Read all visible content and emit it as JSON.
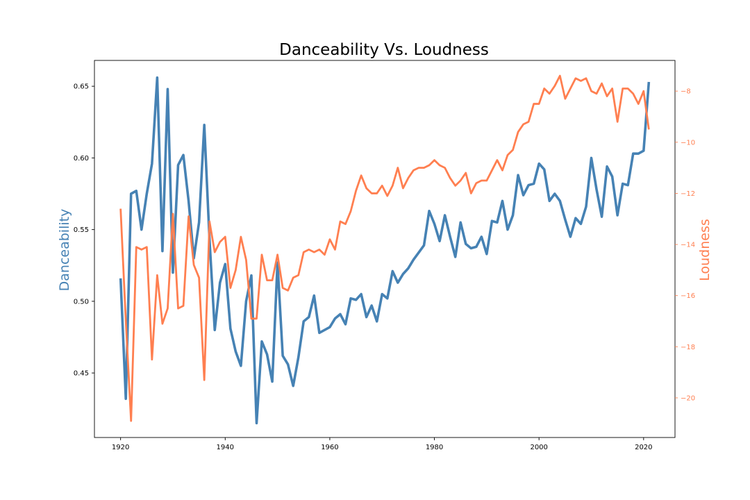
{
  "chart_data": {
    "type": "line",
    "title": "Danceability Vs. Loudness",
    "xlabel": "",
    "x": [
      1920,
      1921,
      1922,
      1923,
      1924,
      1925,
      1926,
      1927,
      1928,
      1929,
      1930,
      1931,
      1932,
      1933,
      1934,
      1935,
      1936,
      1937,
      1938,
      1939,
      1940,
      1941,
      1942,
      1943,
      1944,
      1945,
      1946,
      1947,
      1948,
      1949,
      1950,
      1951,
      1952,
      1953,
      1954,
      1955,
      1956,
      1957,
      1958,
      1959,
      1960,
      1961,
      1962,
      1963,
      1964,
      1965,
      1966,
      1967,
      1968,
      1969,
      1970,
      1971,
      1972,
      1973,
      1974,
      1975,
      1976,
      1977,
      1978,
      1979,
      1980,
      1981,
      1982,
      1983,
      1984,
      1985,
      1986,
      1987,
      1988,
      1989,
      1990,
      1991,
      1992,
      1993,
      1994,
      1995,
      1996,
      1997,
      1998,
      1999,
      2000,
      2001,
      2002,
      2003,
      2004,
      2005,
      2006,
      2007,
      2008,
      2009,
      2010,
      2011,
      2012,
      2013,
      2014,
      2015,
      2016,
      2017,
      2018,
      2019,
      2020,
      2021
    ],
    "xlim": [
      1915,
      2026
    ],
    "xticks": [
      1920,
      1940,
      1960,
      1980,
      2000,
      2020
    ],
    "series": [
      {
        "name": "Danceability",
        "axis": "left",
        "color": "#4682b4",
        "values": [
          0.516,
          0.432,
          0.575,
          0.577,
          0.55,
          0.575,
          0.596,
          0.656,
          0.535,
          0.648,
          0.52,
          0.595,
          0.602,
          0.57,
          0.53,
          0.555,
          0.623,
          0.543,
          0.48,
          0.513,
          0.526,
          0.481,
          0.465,
          0.455,
          0.5,
          0.518,
          0.415,
          0.472,
          0.463,
          0.444,
          0.527,
          0.462,
          0.456,
          0.441,
          0.461,
          0.486,
          0.489,
          0.504,
          0.478,
          0.48,
          0.482,
          0.488,
          0.491,
          0.484,
          0.502,
          0.501,
          0.505,
          0.489,
          0.497,
          0.486,
          0.505,
          0.502,
          0.521,
          0.513,
          0.519,
          0.523,
          0.529,
          0.534,
          0.539,
          0.563,
          0.554,
          0.542,
          0.56,
          0.545,
          0.531,
          0.555,
          0.54,
          0.537,
          0.538,
          0.545,
          0.533,
          0.556,
          0.555,
          0.57,
          0.55,
          0.56,
          0.588,
          0.574,
          0.581,
          0.582,
          0.596,
          0.592,
          0.57,
          0.575,
          0.57,
          0.557,
          0.545,
          0.558,
          0.554,
          0.566,
          0.6,
          0.578,
          0.559,
          0.594,
          0.587,
          0.56,
          0.582,
          0.581,
          0.603,
          0.603,
          0.605,
          0.653
        ]
      },
      {
        "name": "Loudness",
        "axis": "right",
        "color": "#ff7f50",
        "values": [
          -12.6,
          -17.0,
          -20.9,
          -14.1,
          -14.2,
          -14.1,
          -18.5,
          -15.2,
          -17.1,
          -16.5,
          -12.8,
          -16.5,
          -16.4,
          -12.9,
          -14.8,
          -15.3,
          -19.3,
          -13.1,
          -14.3,
          -13.9,
          -13.7,
          -15.7,
          -15.0,
          -13.7,
          -14.6,
          -16.9,
          -16.9,
          -14.4,
          -15.4,
          -15.4,
          -14.4,
          -15.7,
          -15.8,
          -15.3,
          -15.2,
          -14.3,
          -14.2,
          -14.3,
          -14.2,
          -14.4,
          -13.8,
          -14.2,
          -13.1,
          -13.2,
          -12.7,
          -11.9,
          -11.3,
          -11.8,
          -12.0,
          -12.0,
          -11.7,
          -12.1,
          -11.7,
          -11.0,
          -11.8,
          -11.4,
          -11.1,
          -11.0,
          -11.0,
          -10.9,
          -10.7,
          -10.9,
          -11.0,
          -11.4,
          -11.7,
          -11.5,
          -11.2,
          -12.0,
          -11.6,
          -11.5,
          -11.5,
          -11.1,
          -10.7,
          -11.1,
          -10.5,
          -10.3,
          -9.6,
          -9.3,
          -9.2,
          -8.5,
          -8.5,
          -7.9,
          -8.1,
          -7.8,
          -7.4,
          -8.3,
          -7.9,
          -7.5,
          -7.6,
          -7.5,
          -8.0,
          -8.1,
          -7.7,
          -8.2,
          -7.9,
          -9.2,
          -7.9,
          -7.9,
          -8.1,
          -8.5,
          -8.0,
          -9.5
        ]
      }
    ],
    "left_axis": {
      "label": "Danceability",
      "color": "#4682b4",
      "ylim": [
        0.405,
        0.668
      ],
      "ticks": [
        0.45,
        0.5,
        0.55,
        0.6,
        0.65
      ],
      "tick_labels": [
        "0.45",
        "0.50",
        "0.55",
        "0.60",
        "0.65"
      ]
    },
    "right_axis": {
      "label": "Loudness",
      "color": "#ff7f50",
      "ylim": [
        -21.55,
        -6.8
      ],
      "ticks": [
        -20,
        -18,
        -16,
        -14,
        -12,
        -10,
        -8
      ],
      "tick_labels": [
        "−20",
        "−18",
        "−16",
        "−14",
        "−12",
        "−10",
        "−8"
      ]
    },
    "grid": false,
    "legend": "none"
  }
}
